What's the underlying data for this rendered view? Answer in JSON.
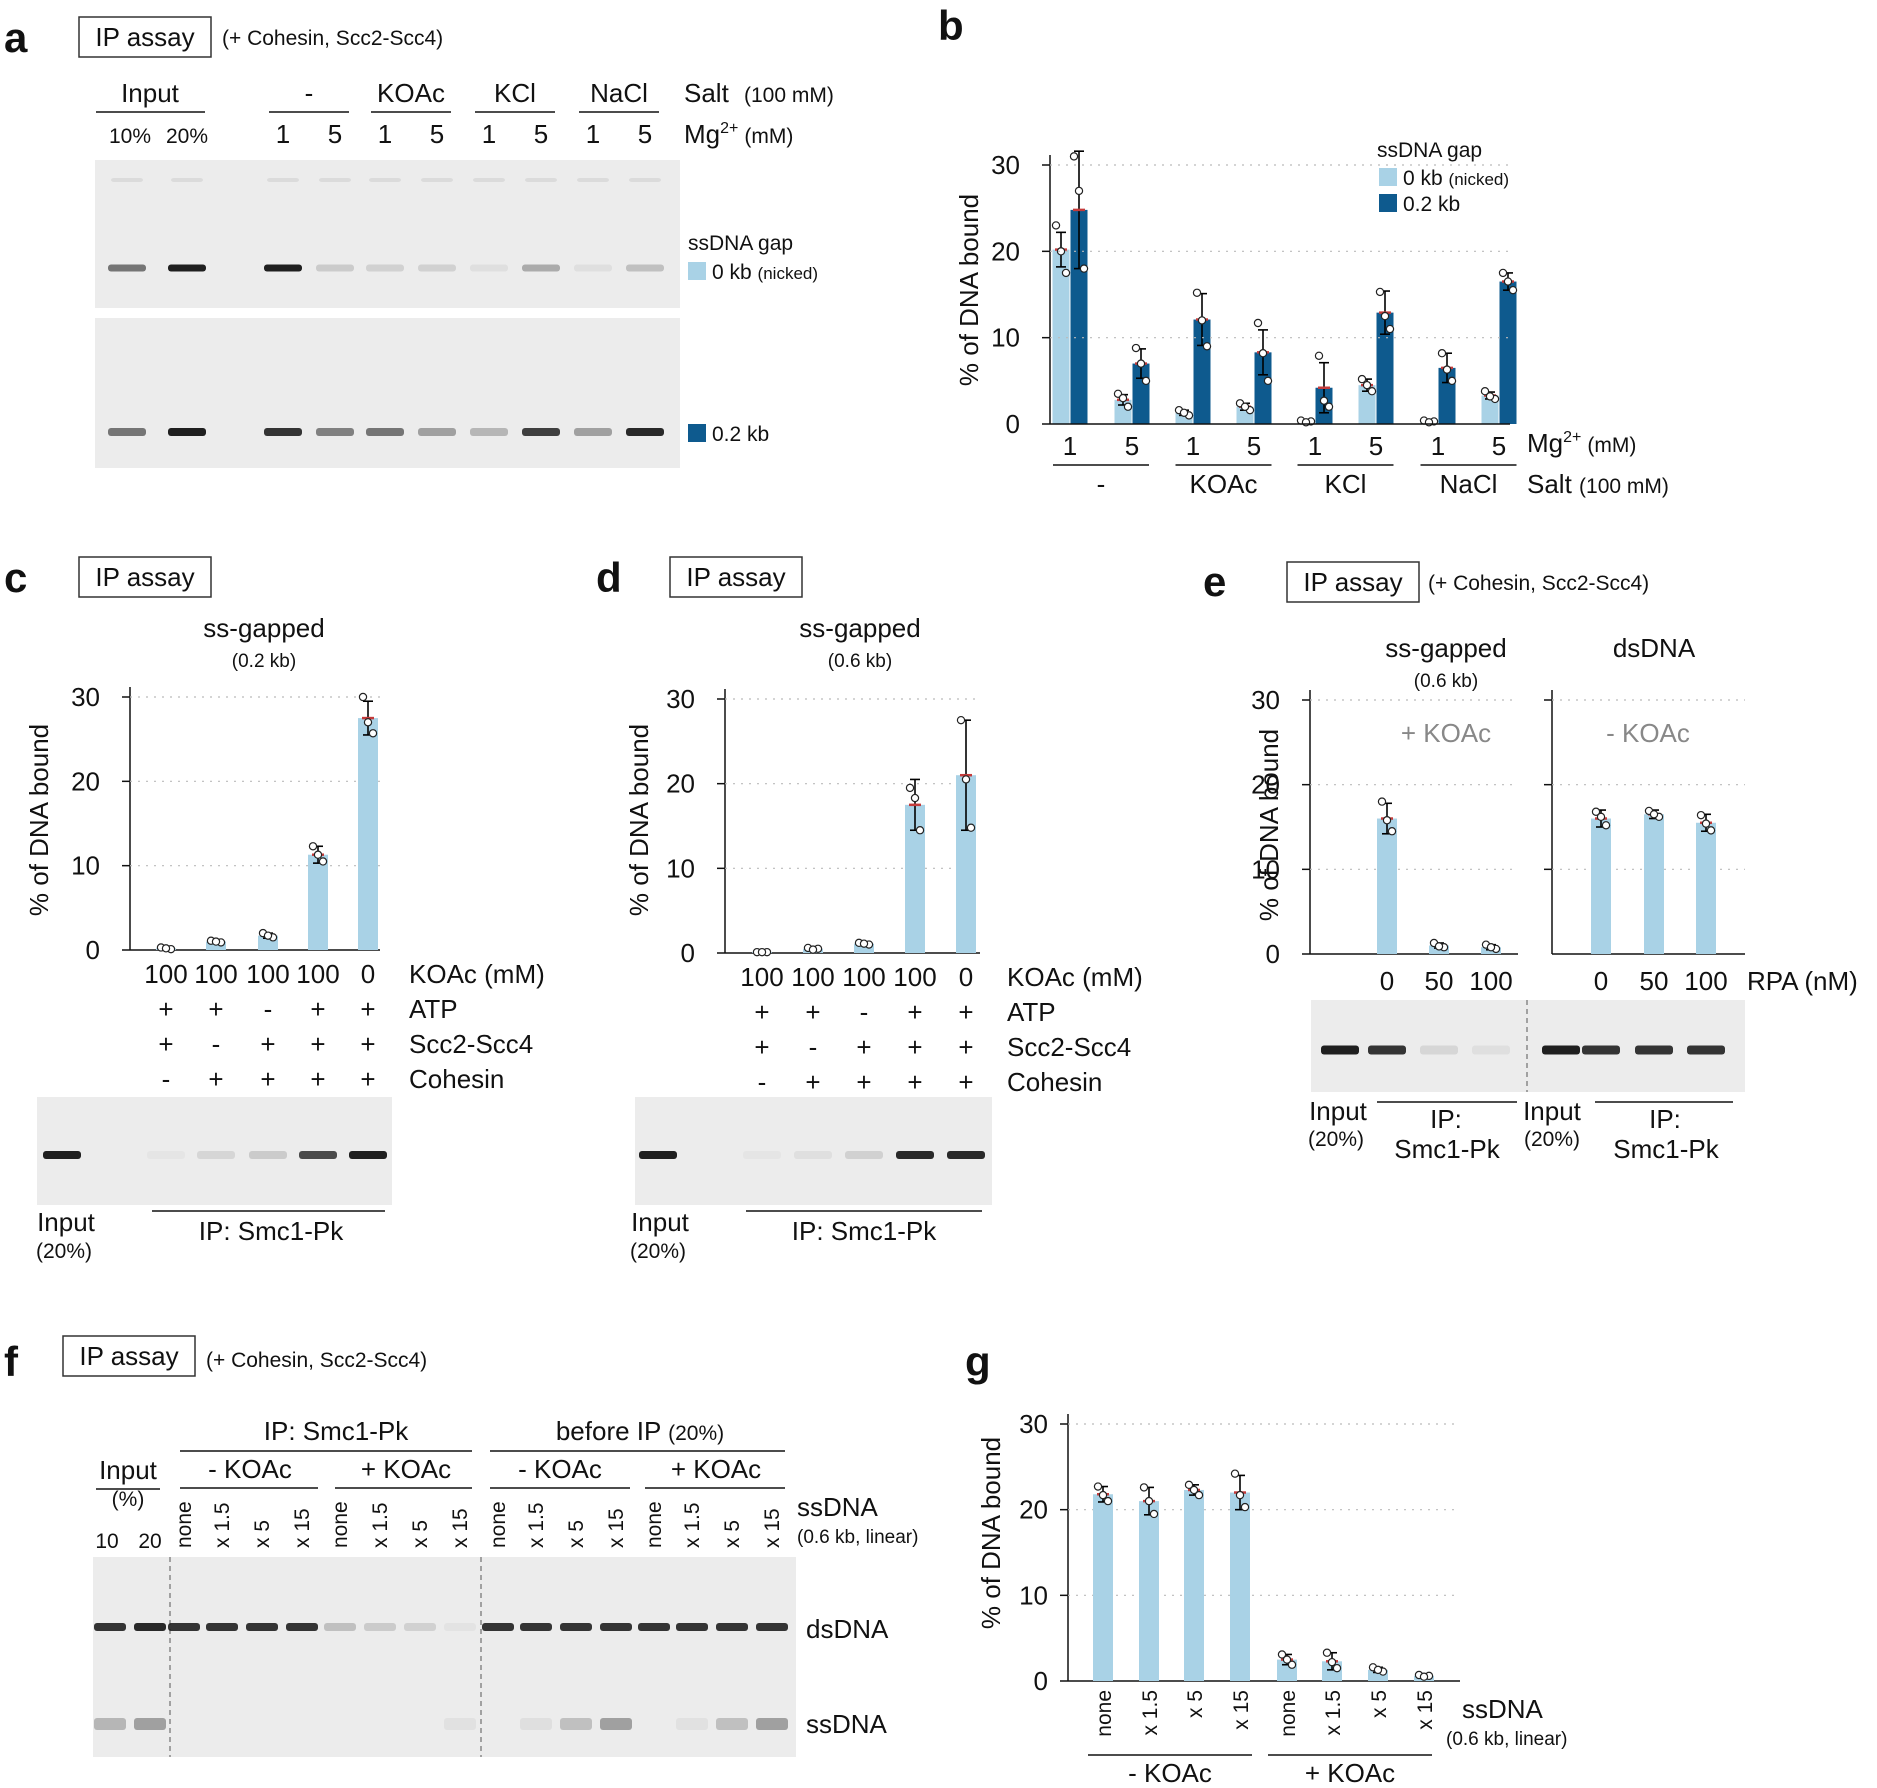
{
  "colors": {
    "light": "#a9d2e6",
    "dark": "#0e5a8e",
    "err": "#000000",
    "mean": "#c43b3b",
    "gel": "#ececec",
    "band": "#222222"
  },
  "panels": {
    "a": {
      "letter": "a",
      "ip_assay": "IP assay",
      "condition": "(+ Cohesin, Scc2-Scc4)",
      "input": "Input",
      "input_pcts": [
        "10%",
        "20%"
      ],
      "salt_groups": [
        "-",
        "KOAc",
        "KCl",
        "NaCl"
      ],
      "salt_label": "Salt",
      "salt_unit": "(100 mM)",
      "mg_values": [
        "1",
        "5",
        "1",
        "5",
        "1",
        "5",
        "1",
        "5"
      ],
      "mg_label": "Mg",
      "mg_sup": "2+",
      "mg_unit": "(mM)",
      "ssdna_gap": "ssDNA gap",
      "legend_0kb": "0 kb",
      "legend_0kb_note": "(nicked)",
      "legend_02kb": "0.2 kb"
    },
    "b": {
      "letter": "b",
      "y_title": "% of DNA bound",
      "y_ticks": [
        "0",
        "10",
        "20",
        "30"
      ],
      "legend_title": "ssDNA gap",
      "legend_0kb": "0 kb",
      "legend_0kb_note": "(nicked)",
      "legend_02kb": "0.2 kb",
      "mg_values": [
        "1",
        "5",
        "1",
        "5",
        "1",
        "5",
        "1",
        "5"
      ],
      "mg_label": "Mg",
      "mg_sup": "2+",
      "mg_unit": "(mM)",
      "salt_groups": [
        "-",
        "KOAc",
        "KCl",
        "NaCl"
      ],
      "salt_label": "Salt",
      "salt_unit": "(100 mM)"
    },
    "c": {
      "letter": "c",
      "ip_assay": "IP assay",
      "title": "ss-gapped",
      "subtitle": "(0.2 kb)",
      "y_title": "% of DNA bound",
      "y_ticks": [
        "0",
        "10",
        "20",
        "30"
      ],
      "koac_values": [
        "100",
        "100",
        "100",
        "100",
        "0"
      ],
      "koac_label": "KOAc (mM)",
      "rows": [
        {
          "label": "ATP",
          "signs": [
            "+",
            "+",
            "-",
            "+",
            "+"
          ]
        },
        {
          "label": "Scc2-Scc4",
          "signs": [
            "+",
            "-",
            "+",
            "+",
            "+"
          ]
        },
        {
          "label": "Cohesin",
          "signs": [
            "-",
            "+",
            "+",
            "+",
            "+"
          ]
        }
      ],
      "input": "Input",
      "input_pct": "(20%)",
      "ip_label": "IP: Smc1-Pk"
    },
    "d": {
      "letter": "d",
      "ip_assay": "IP assay",
      "title": "ss-gapped",
      "subtitle": "(0.6 kb)",
      "y_title": "% of DNA bound",
      "y_ticks": [
        "0",
        "10",
        "20",
        "30"
      ],
      "koac_values": [
        "100",
        "100",
        "100",
        "100",
        "0"
      ],
      "koac_label": "KOAc (mM)",
      "rows": [
        {
          "label": "ATP",
          "signs": [
            "+",
            "+",
            "-",
            "+",
            "+"
          ]
        },
        {
          "label": "Scc2-Scc4",
          "signs": [
            "+",
            "-",
            "+",
            "+",
            "+"
          ]
        },
        {
          "label": "Cohesin",
          "signs": [
            "-",
            "+",
            "+",
            "+",
            "+"
          ]
        }
      ],
      "input": "Input",
      "input_pct": "(20%)",
      "ip_label": "IP: Smc1-Pk"
    },
    "e": {
      "letter": "e",
      "ip_assay": "IP assay",
      "condition": "(+ Cohesin, Scc2-Scc4)",
      "title_left": "ss-gapped",
      "subtitle_left": "(0.6 kb)",
      "cond_left": "+ KOAc",
      "title_right": "dsDNA",
      "cond_right": "- KOAc",
      "y_title": "% of DNA bound",
      "y_ticks": [
        "0",
        "10",
        "20",
        "30"
      ],
      "rpa_values": [
        "0",
        "50",
        "100",
        "0",
        "50",
        "100"
      ],
      "rpa_label": "RPA (nM)",
      "input": "Input",
      "input_pct": "(20%)",
      "ip_label_1": "IP:",
      "ip_label_2": "Smc1-Pk"
    },
    "f": {
      "letter": "f",
      "ip_assay": "IP assay",
      "condition": "(+ Cohesin, Scc2-Scc4)",
      "input": "Input",
      "input_pct": "(%)",
      "input_values": [
        "10",
        "20"
      ],
      "ip_label": "IP: Smc1-Pk",
      "before_ip": "before IP",
      "before_ip_pct": "(20%)",
      "minus_koac": "- KOAc",
      "plus_koac": "+ KOAc",
      "ssdna_levels": [
        "none",
        "x 1.5",
        "x 5",
        "x 15",
        "none",
        "x 1.5",
        "x 5",
        "x 15",
        "none",
        "x 1.5",
        "x 5",
        "x 15",
        "none",
        "x 1.5",
        "x 5",
        "x 15"
      ],
      "ssdna_label": "ssDNA",
      "ssdna_note": "(0.6 kb, linear)",
      "band_dsdna": "dsDNA",
      "band_ssdna": "ssDNA"
    },
    "g": {
      "letter": "g",
      "y_title": "% of DNA bound",
      "y_ticks": [
        "0",
        "10",
        "20",
        "30"
      ],
      "ssdna_levels": [
        "none",
        "x 1.5",
        "x 5",
        "x 15",
        "none",
        "x 1.5",
        "x 5",
        "x 15"
      ],
      "ssdna_label": "ssDNA",
      "ssdna_note": "(0.6 kb, linear)",
      "groups": [
        "- KOAc",
        "+ KOAc"
      ]
    }
  },
  "chart_data": [
    {
      "panel": "b",
      "type": "bar",
      "ylabel": "% of DNA bound",
      "ylim": [
        0,
        30
      ],
      "categories": [
        "- Mg1",
        "- Mg5",
        "KOAc Mg1",
        "KOAc Mg5",
        "KCl Mg1",
        "KCl Mg5",
        "NaCl Mg1",
        "NaCl Mg5"
      ],
      "series": [
        {
          "name": "0 kb (nicked)",
          "values": [
            20.2,
            2.8,
            1.3,
            2.0,
            0.3,
            4.5,
            0.3,
            3.3
          ],
          "sd": [
            2.0,
            0.6,
            0.3,
            0.4,
            0.1,
            0.7,
            0.1,
            0.4
          ],
          "points": [
            [
              23,
              17.5,
              20
            ],
            [
              3.5,
              2,
              3
            ],
            [
              1.6,
              1,
              1.3
            ],
            [
              2.4,
              1.6,
              2
            ],
            [
              0.4,
              0.3,
              0.2
            ],
            [
              5.2,
              3.8,
              4.5
            ],
            [
              0.4,
              0.3,
              0.2
            ],
            [
              3.8,
              2.9,
              3.2
            ]
          ]
        },
        {
          "name": "0.2 kb",
          "values": [
            24.8,
            7.0,
            12.1,
            8.3,
            4.2,
            12.9,
            6.5,
            16.5
          ],
          "sd": [
            6.8,
            1.7,
            3.0,
            2.6,
            2.9,
            2.5,
            1.7,
            1.0
          ],
          "points": [
            [
              31,
              18,
              27
            ],
            [
              8.8,
              5,
              7
            ],
            [
              15.2,
              9,
              12
            ],
            [
              11.7,
              5,
              8.2
            ],
            [
              7.9,
              2,
              2.7
            ],
            [
              15.3,
              11,
              12.5
            ],
            [
              8.2,
              5,
              6.3
            ],
            [
              17.5,
              15.5,
              16.5
            ]
          ]
        }
      ]
    },
    {
      "panel": "c",
      "type": "bar",
      "title": "ss-gapped (0.2 kb)",
      "ylabel": "% of DNA bound",
      "ylim": [
        0,
        30
      ],
      "categories": [
        "100 KOAc +ATP +Scc2 -Cohesin",
        "100 KOAc +ATP -Scc2 +Cohesin",
        "100 KOAc -ATP +Scc2 +Cohesin",
        "100 KOAc +ATP +Scc2 +Cohesin",
        "0 KOAc +ATP +Scc2 +Cohesin"
      ],
      "values": [
        0.2,
        1.0,
        1.7,
        11.3,
        27.5
      ],
      "sd": [
        0.1,
        0.1,
        0.3,
        1.0,
        2.0
      ],
      "points": [
        [
          0.3,
          0.1,
          0.2
        ],
        [
          1.1,
          0.9,
          1.0
        ],
        [
          2.0,
          1.5,
          1.7
        ],
        [
          12.3,
          10.5,
          11.3
        ],
        [
          30,
          25.7,
          27
        ]
      ]
    },
    {
      "panel": "d",
      "type": "bar",
      "title": "ss-gapped (0.6 kb)",
      "ylabel": "% of DNA bound",
      "ylim": [
        0,
        30
      ],
      "categories": [
        "100 KOAc +ATP +Scc2 -Cohesin",
        "100 KOAc +ATP -Scc2 +Cohesin",
        "100 KOAc -ATP +Scc2 +Cohesin",
        "100 KOAc +ATP +Scc2 +Cohesin",
        "0 KOAc +ATP +Scc2 +Cohesin"
      ],
      "values": [
        0.1,
        0.5,
        1.1,
        17.5,
        21.0
      ],
      "sd": [
        0.05,
        0.1,
        0.2,
        3.0,
        6.5
      ],
      "points": [
        [
          0.1,
          0.1,
          0.1
        ],
        [
          0.6,
          0.5,
          0.4
        ],
        [
          1.2,
          1.0,
          1.1
        ],
        [
          19.5,
          14.5,
          18.3
        ],
        [
          27.5,
          14.8,
          20.5
        ]
      ]
    },
    {
      "panel": "e",
      "type": "bar",
      "ylabel": "% of DNA bound",
      "ylim": [
        0,
        30
      ],
      "groups": [
        {
          "name": "ss-gapped (0.6 kb) + KOAc",
          "x": [
            "0",
            "50",
            "100"
          ],
          "values": [
            16.0,
            1.0,
            0.8
          ],
          "sd": [
            1.8,
            0.3,
            0.3
          ],
          "points": [
            [
              18,
              14.5,
              15.8
            ],
            [
              1.3,
              0.8,
              0.9
            ],
            [
              1.1,
              0.6,
              0.8
            ]
          ]
        },
        {
          "name": "dsDNA - KOAc",
          "x": [
            "0",
            "50",
            "100"
          ],
          "values": [
            16.0,
            16.5,
            15.5
          ],
          "sd": [
            1.0,
            0.5,
            1.0
          ],
          "points": [
            [
              16.8,
              15.2,
              16.2
            ],
            [
              16.9,
              16.2,
              16.5
            ],
            [
              16.4,
              14.6,
              15.4
            ]
          ]
        }
      ],
      "xlabel": "RPA (nM)"
    },
    {
      "panel": "g",
      "type": "bar",
      "ylabel": "% of DNA bound",
      "ylim": [
        0,
        30
      ],
      "categories": [
        "none",
        "x 1.5",
        "x 5",
        "x 15",
        "none",
        "x 1.5",
        "x 5",
        "x 15"
      ],
      "groups": [
        "- KOAc",
        "- KOAc",
        "- KOAc",
        "- KOAc",
        "+ KOAc",
        "+ KOAc",
        "+ KOAc",
        "+ KOAc"
      ],
      "values": [
        21.8,
        21.0,
        22.3,
        22.0,
        2.5,
        2.3,
        1.3,
        0.6
      ],
      "sd": [
        0.9,
        1.6,
        0.6,
        2.0,
        0.6,
        1.0,
        0.3,
        0.1
      ],
      "points": [
        [
          22.7,
          21,
          21.7
        ],
        [
          22.6,
          19.5,
          21
        ],
        [
          22.9,
          21.7,
          22.3
        ],
        [
          24.2,
          20.3,
          21.7
        ],
        [
          3.1,
          1.9,
          2.5
        ],
        [
          3.3,
          1.5,
          2.2
        ],
        [
          1.6,
          1.1,
          1.3
        ],
        [
          0.7,
          0.6,
          0.5
        ]
      ],
      "xlabel": "ssDNA (0.6 kb, linear)"
    }
  ]
}
